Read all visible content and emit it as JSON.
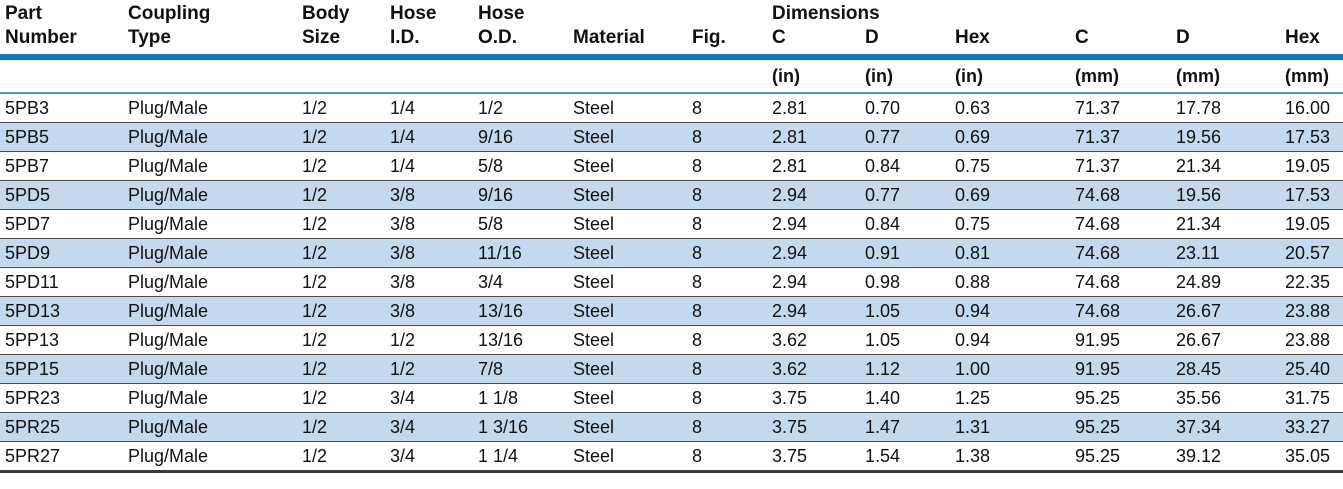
{
  "table": {
    "title": "coupling-parts-dimensions-table",
    "colors": {
      "header_bar": "#0d78bb",
      "row_stripe": "#c5d9ee",
      "units_rule": "#4a94c9",
      "row_rule": "#4d4d4d",
      "bottom_rule": "#3a3a3a",
      "text": "#111111"
    },
    "column_keys": [
      "part-number",
      "coupling-type",
      "body-size",
      "hose-id",
      "hose-od",
      "material",
      "fig",
      "c-in",
      "d-in",
      "hex-in",
      "c-mm",
      "d-mm",
      "hex-mm"
    ],
    "header": {
      "group_label": "Dimensions",
      "columns": [
        {
          "line1": "Part",
          "line2": "Number"
        },
        {
          "line1": "Coupling",
          "line2": "Type"
        },
        {
          "line1": "Body",
          "line2": "Size"
        },
        {
          "line1": "Hose",
          "line2": "I.D."
        },
        {
          "line1": "Hose",
          "line2": "O.D."
        },
        {
          "line1": "",
          "line2": "Material"
        },
        {
          "line1": "",
          "line2": "Fig."
        },
        {
          "line1": "Dimensions",
          "line2": "C"
        },
        {
          "line1": "",
          "line2": "D"
        },
        {
          "line1": "",
          "line2": "Hex"
        },
        {
          "line1": "",
          "line2": "C"
        },
        {
          "line1": "",
          "line2": "D"
        },
        {
          "line1": "",
          "line2": "Hex"
        }
      ],
      "units": [
        "",
        "",
        "",
        "",
        "",
        "",
        "",
        "(in)",
        "(in)",
        "(in)",
        "(mm)",
        "(mm)",
        "(mm)"
      ]
    },
    "rows": [
      [
        "5PB3",
        "Plug/Male",
        "1/2",
        "1/4",
        "1/2",
        "Steel",
        "8",
        "2.81",
        "0.70",
        "0.63",
        "71.37",
        "17.78",
        "16.00"
      ],
      [
        "5PB5",
        "Plug/Male",
        "1/2",
        "1/4",
        "9/16",
        "Steel",
        "8",
        "2.81",
        "0.77",
        "0.69",
        "71.37",
        "19.56",
        "17.53"
      ],
      [
        "5PB7",
        "Plug/Male",
        "1/2",
        "1/4",
        "5/8",
        "Steel",
        "8",
        "2.81",
        "0.84",
        "0.75",
        "71.37",
        "21.34",
        "19.05"
      ],
      [
        "5PD5",
        "Plug/Male",
        "1/2",
        "3/8",
        "9/16",
        "Steel",
        "8",
        "2.94",
        "0.77",
        "0.69",
        "74.68",
        "19.56",
        "17.53"
      ],
      [
        "5PD7",
        "Plug/Male",
        "1/2",
        "3/8",
        "5/8",
        "Steel",
        "8",
        "2.94",
        "0.84",
        "0.75",
        "74.68",
        "21.34",
        "19.05"
      ],
      [
        "5PD9",
        "Plug/Male",
        "1/2",
        "3/8",
        "11/16",
        "Steel",
        "8",
        "2.94",
        "0.91",
        "0.81",
        "74.68",
        "23.11",
        "20.57"
      ],
      [
        "5PD11",
        "Plug/Male",
        "1/2",
        "3/8",
        "3/4",
        "Steel",
        "8",
        "2.94",
        "0.98",
        "0.88",
        "74.68",
        "24.89",
        "22.35"
      ],
      [
        "5PD13",
        "Plug/Male",
        "1/2",
        "3/8",
        "13/16",
        "Steel",
        "8",
        "2.94",
        "1.05",
        "0.94",
        "74.68",
        "26.67",
        "23.88"
      ],
      [
        "5PP13",
        "Plug/Male",
        "1/2",
        "1/2",
        "13/16",
        "Steel",
        "8",
        "3.62",
        "1.05",
        "0.94",
        "91.95",
        "26.67",
        "23.88"
      ],
      [
        "5PP15",
        "Plug/Male",
        "1/2",
        "1/2",
        "7/8",
        "Steel",
        "8",
        "3.62",
        "1.12",
        "1.00",
        "91.95",
        "28.45",
        "25.40"
      ],
      [
        "5PR23",
        "Plug/Male",
        "1/2",
        "3/4",
        "1 1/8",
        "Steel",
        "8",
        "3.75",
        "1.40",
        "1.25",
        "95.25",
        "35.56",
        "31.75"
      ],
      [
        "5PR25",
        "Plug/Male",
        "1/2",
        "3/4",
        "1 3/16",
        "Steel",
        "8",
        "3.75",
        "1.47",
        "1.31",
        "95.25",
        "37.34",
        "33.27"
      ],
      [
        "5PR27",
        "Plug/Male",
        "1/2",
        "3/4",
        "1 1/4",
        "Steel",
        "8",
        "3.75",
        "1.54",
        "1.38",
        "95.25",
        "39.12",
        "35.05"
      ]
    ]
  }
}
